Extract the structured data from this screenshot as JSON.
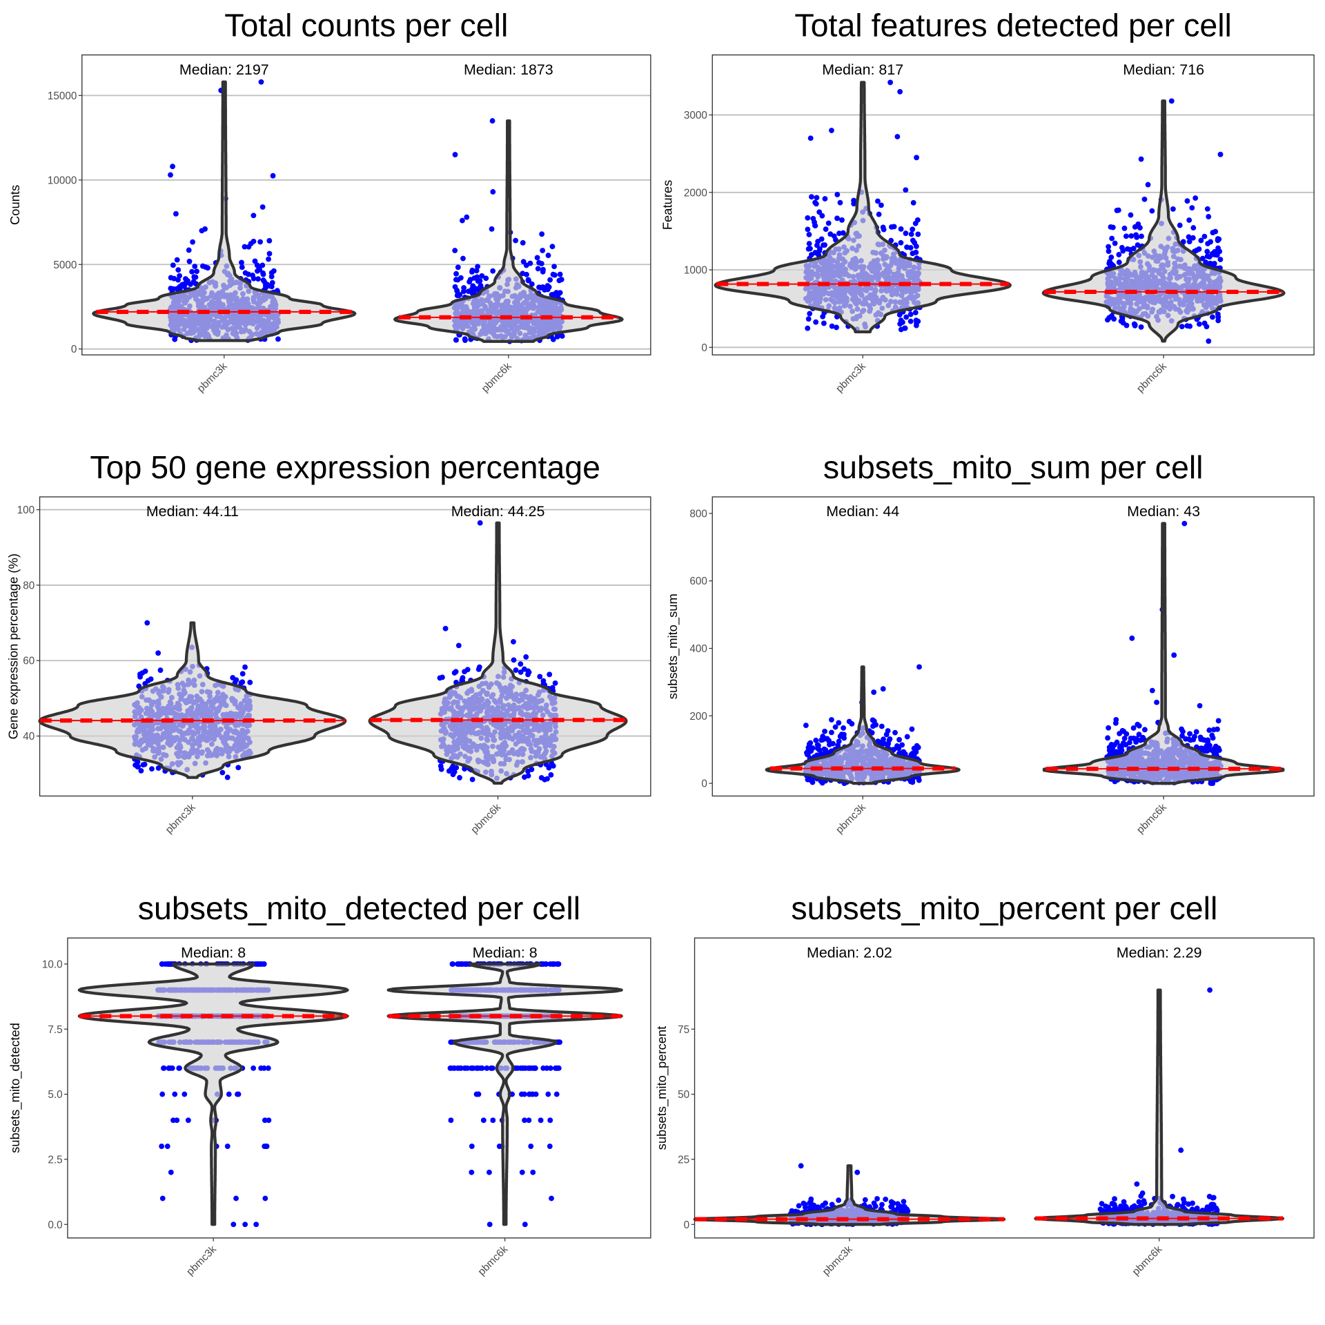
{
  "colors": {
    "points": "#0000ff",
    "violin_fill": "#d3d3d3",
    "violin_stroke": "#333333",
    "median_line": "#ff0000",
    "grid": "#bebebe"
  },
  "chart_data": [
    {
      "type": "violin",
      "title": "Total counts per cell",
      "ylabel": "Counts",
      "categories": [
        "pbmc3k",
        "pbmc6k"
      ],
      "ylim": [
        -350,
        17400
      ],
      "yticks": [
        0,
        5000,
        10000,
        15000
      ],
      "ytick_labels": [
        "0",
        "5000",
        "10000",
        "15000"
      ],
      "grid": true,
      "medians": [
        2197,
        1873
      ],
      "median_labels": [
        "Median: 2197",
        "Median: 1873"
      ],
      "violins": [
        [
          [
            500,
            0.2
          ],
          [
            650,
            0.3
          ],
          [
            1000,
            0.42
          ],
          [
            1500,
            0.75
          ],
          [
            2100,
            1.0
          ],
          [
            2600,
            0.75
          ],
          [
            3000,
            0.5
          ],
          [
            3700,
            0.2
          ],
          [
            4500,
            0.08
          ],
          [
            5500,
            0.04
          ],
          [
            7000,
            0.015
          ],
          [
            15800,
            0.01
          ]
        ],
        [
          [
            450,
            0.22
          ],
          [
            800,
            0.35
          ],
          [
            1300,
            0.7
          ],
          [
            1750,
            1.0
          ],
          [
            2200,
            0.8
          ],
          [
            2700,
            0.5
          ],
          [
            3300,
            0.25
          ],
          [
            4000,
            0.12
          ],
          [
            5000,
            0.04
          ],
          [
            6000,
            0.015
          ],
          [
            13500,
            0.01
          ]
        ]
      ],
      "jitter_range": [
        [
          500,
          6500
        ],
        [
          450,
          6500
        ]
      ],
      "outliers": [
        [
          15800,
          15300,
          10800,
          10300,
          10250,
          8900,
          8400,
          8000,
          7900,
          7100,
          7000
        ],
        [
          13500,
          11500,
          9300,
          7800,
          7600,
          7100,
          6900,
          6800
        ]
      ]
    },
    {
      "type": "violin",
      "title": "Total features detected per cell",
      "ylabel": "Features",
      "categories": [
        "pbmc3k",
        "pbmc6k"
      ],
      "ylim": [
        -98,
        3775
      ],
      "yticks": [
        0,
        1000,
        2000,
        3000
      ],
      "ytick_labels": [
        "0",
        "1000",
        "2000",
        "3000"
      ],
      "grid": true,
      "medians": [
        817,
        716
      ],
      "median_labels": [
        "Median: 817",
        "Median: 716"
      ],
      "violins": [
        [
          [
            200,
            0.05
          ],
          [
            400,
            0.15
          ],
          [
            600,
            0.5
          ],
          [
            800,
            1.0
          ],
          [
            1000,
            0.6
          ],
          [
            1200,
            0.25
          ],
          [
            1500,
            0.1
          ],
          [
            1800,
            0.04
          ],
          [
            2200,
            0.015
          ],
          [
            3420,
            0.01
          ]
        ],
        [
          [
            80,
            0.01
          ],
          [
            300,
            0.12
          ],
          [
            500,
            0.45
          ],
          [
            700,
            1.0
          ],
          [
            900,
            0.6
          ],
          [
            1100,
            0.3
          ],
          [
            1400,
            0.12
          ],
          [
            1700,
            0.04
          ],
          [
            2100,
            0.015
          ],
          [
            3180,
            0.01
          ]
        ]
      ],
      "jitter_range": [
        [
          220,
          2050
        ],
        [
          250,
          1950
        ]
      ],
      "outliers": [
        [
          3420,
          3300,
          2800,
          2720,
          2700,
          2450
        ],
        [
          3180,
          2490,
          2430,
          2100,
          80
        ]
      ]
    },
    {
      "type": "violin",
      "title": "Top 50 gene expression percentage",
      "ylabel": "Gene expression percentage (%)",
      "categories": [
        "pbmc3k",
        "pbmc6k"
      ],
      "ylim": [
        24.1,
        103.4
      ],
      "yticks": [
        40,
        60,
        80,
        100
      ],
      "ytick_labels": [
        "40",
        "60",
        "80",
        "100"
      ],
      "grid": true,
      "medians": [
        44.11,
        44.25
      ],
      "median_labels": [
        "Median: 44.11",
        "Median: 44.25"
      ],
      "violins": [
        [
          [
            29,
            0.03
          ],
          [
            32,
            0.2
          ],
          [
            36,
            0.5
          ],
          [
            40,
            0.8
          ],
          [
            44,
            1.0
          ],
          [
            48,
            0.75
          ],
          [
            52,
            0.35
          ],
          [
            56,
            0.1
          ],
          [
            60,
            0.04
          ],
          [
            70,
            0.01
          ]
        ],
        [
          [
            27.5,
            0.03
          ],
          [
            31,
            0.2
          ],
          [
            35,
            0.5
          ],
          [
            40,
            0.85
          ],
          [
            44,
            1.0
          ],
          [
            48,
            0.8
          ],
          [
            52,
            0.4
          ],
          [
            56,
            0.12
          ],
          [
            60,
            0.04
          ],
          [
            70,
            0.015
          ],
          [
            96.5,
            0.01
          ]
        ]
      ],
      "jitter_range": [
        [
          29,
          59
        ],
        [
          28,
          61
        ]
      ],
      "outliers": [
        [
          70,
          63.5,
          62
        ],
        [
          96.5,
          68.5,
          65,
          64
        ]
      ]
    },
    {
      "type": "violin",
      "title": "subsets_mito_sum per cell",
      "ylabel": "subsets_mito_sum",
      "categories": [
        "pbmc3k",
        "pbmc6k"
      ],
      "ylim": [
        -37.6,
        849
      ],
      "yticks": [
        0,
        200,
        400,
        600,
        800
      ],
      "ytick_labels": [
        "0",
        "200",
        "400",
        "600",
        "800"
      ],
      "grid": false,
      "medians": [
        44,
        43
      ],
      "median_labels": [
        "Median: 44",
        "Median: 43"
      ],
      "violins": [
        [
          [
            0,
            0.1
          ],
          [
            20,
            0.5
          ],
          [
            40,
            1.0
          ],
          [
            60,
            0.6
          ],
          [
            90,
            0.3
          ],
          [
            120,
            0.12
          ],
          [
            160,
            0.04
          ],
          [
            200,
            0.015
          ],
          [
            345,
            0.01
          ]
        ],
        [
          [
            0,
            0.1
          ],
          [
            20,
            0.5
          ],
          [
            40,
            1.0
          ],
          [
            60,
            0.6
          ],
          [
            90,
            0.3
          ],
          [
            120,
            0.15
          ],
          [
            160,
            0.04
          ],
          [
            200,
            0.015
          ],
          [
            770,
            0.01
          ]
        ]
      ],
      "jitter_range": [
        [
          0,
          190
        ],
        [
          0,
          190
        ]
      ],
      "outliers": [
        [
          345,
          280,
          270,
          240,
          230
        ],
        [
          770,
          515,
          430,
          380,
          275,
          240,
          230
        ]
      ]
    },
    {
      "type": "violin",
      "title": "subsets_mito_detected per cell",
      "ylabel": "subsets_mito_detected",
      "categories": [
        "pbmc3k",
        "pbmc6k"
      ],
      "ylim": [
        -0.52,
        11.0
      ],
      "yticks": [
        0,
        2.5,
        5,
        7.5,
        10
      ],
      "ytick_labels": [
        "0.0",
        "2.5",
        "5.0",
        "7.5",
        "10.0"
      ],
      "grid": false,
      "medians": [
        8,
        8
      ],
      "median_labels": [
        "Median: 8",
        "Median: 8"
      ],
      "violins": [
        [
          [
            0,
            0.01
          ],
          [
            3,
            0.015
          ],
          [
            3.5,
            0.01
          ],
          [
            4,
            0.02
          ],
          [
            4.5,
            0.01
          ],
          [
            5,
            0.06
          ],
          [
            5.5,
            0.05
          ],
          [
            6,
            0.21
          ],
          [
            6.5,
            0.09
          ],
          [
            7,
            0.48
          ],
          [
            7.5,
            0.18
          ],
          [
            8,
            1.0
          ],
          [
            8.5,
            0.2
          ],
          [
            9,
            1.0
          ],
          [
            9.5,
            0.12
          ],
          [
            10,
            0.3
          ]
        ],
        [
          [
            0,
            0.01
          ],
          [
            4,
            0.02
          ],
          [
            4.5,
            0.01
          ],
          [
            5,
            0.04
          ],
          [
            5.5,
            0.01
          ],
          [
            6,
            0.07
          ],
          [
            6.5,
            0.02
          ],
          [
            7,
            0.44
          ],
          [
            7.3,
            0.04
          ],
          [
            7.7,
            0.04
          ],
          [
            8,
            1.0
          ],
          [
            8.3,
            0.04
          ],
          [
            8.7,
            0.03
          ],
          [
            9,
            1.0
          ],
          [
            9.3,
            0.04
          ],
          [
            9.7,
            0.02
          ],
          [
            10,
            0.3
          ]
        ]
      ],
      "discrete_weights": [
        {
          "4": 25,
          "5": 30,
          "6": 150,
          "7": 250,
          "8": 600,
          "9": 600,
          "10": 200
        },
        {
          "4": 40,
          "5": 50,
          "6": 200,
          "7": 300,
          "8": 700,
          "9": 700,
          "10": 250
        }
      ],
      "outliers": [
        [
          0,
          0,
          0,
          1,
          1,
          1,
          2,
          3,
          3,
          3,
          3,
          3,
          3,
          3
        ],
        [
          0,
          0,
          1,
          2,
          2,
          2,
          2,
          3,
          3,
          3,
          3,
          3
        ]
      ]
    },
    {
      "type": "violin",
      "title": "subsets_mito_percent per cell",
      "ylabel": "subsets_mito_percent",
      "categories": [
        "pbmc3k",
        "pbmc6k"
      ],
      "ylim": [
        -5.2,
        110
      ],
      "yticks": [
        0,
        25,
        50,
        75
      ],
      "ytick_labels": [
        "0",
        "25",
        "50",
        "75"
      ],
      "grid": false,
      "medians": [
        2.02,
        2.29
      ],
      "median_labels": [
        "Median: 2.02",
        "Median: 2.29"
      ],
      "violins": [
        [
          [
            0,
            0.2
          ],
          [
            1,
            0.6
          ],
          [
            2,
            1.0
          ],
          [
            3,
            0.6
          ],
          [
            4,
            0.3
          ],
          [
            6,
            0.1
          ],
          [
            8,
            0.03
          ],
          [
            10,
            0.015
          ],
          [
            22.5,
            0.01
          ]
        ],
        [
          [
            0,
            0.2
          ],
          [
            1,
            0.6
          ],
          [
            2.3,
            1.0
          ],
          [
            3.5,
            0.6
          ],
          [
            5,
            0.2
          ],
          [
            7,
            0.06
          ],
          [
            10,
            0.02
          ],
          [
            90,
            0.01
          ]
        ]
      ],
      "jitter_range": [
        [
          0,
          10
        ],
        [
          0,
          11
        ]
      ],
      "outliers": [
        [
          22.5,
          20
        ],
        [
          90,
          28.5,
          15.5,
          12
        ]
      ]
    }
  ]
}
